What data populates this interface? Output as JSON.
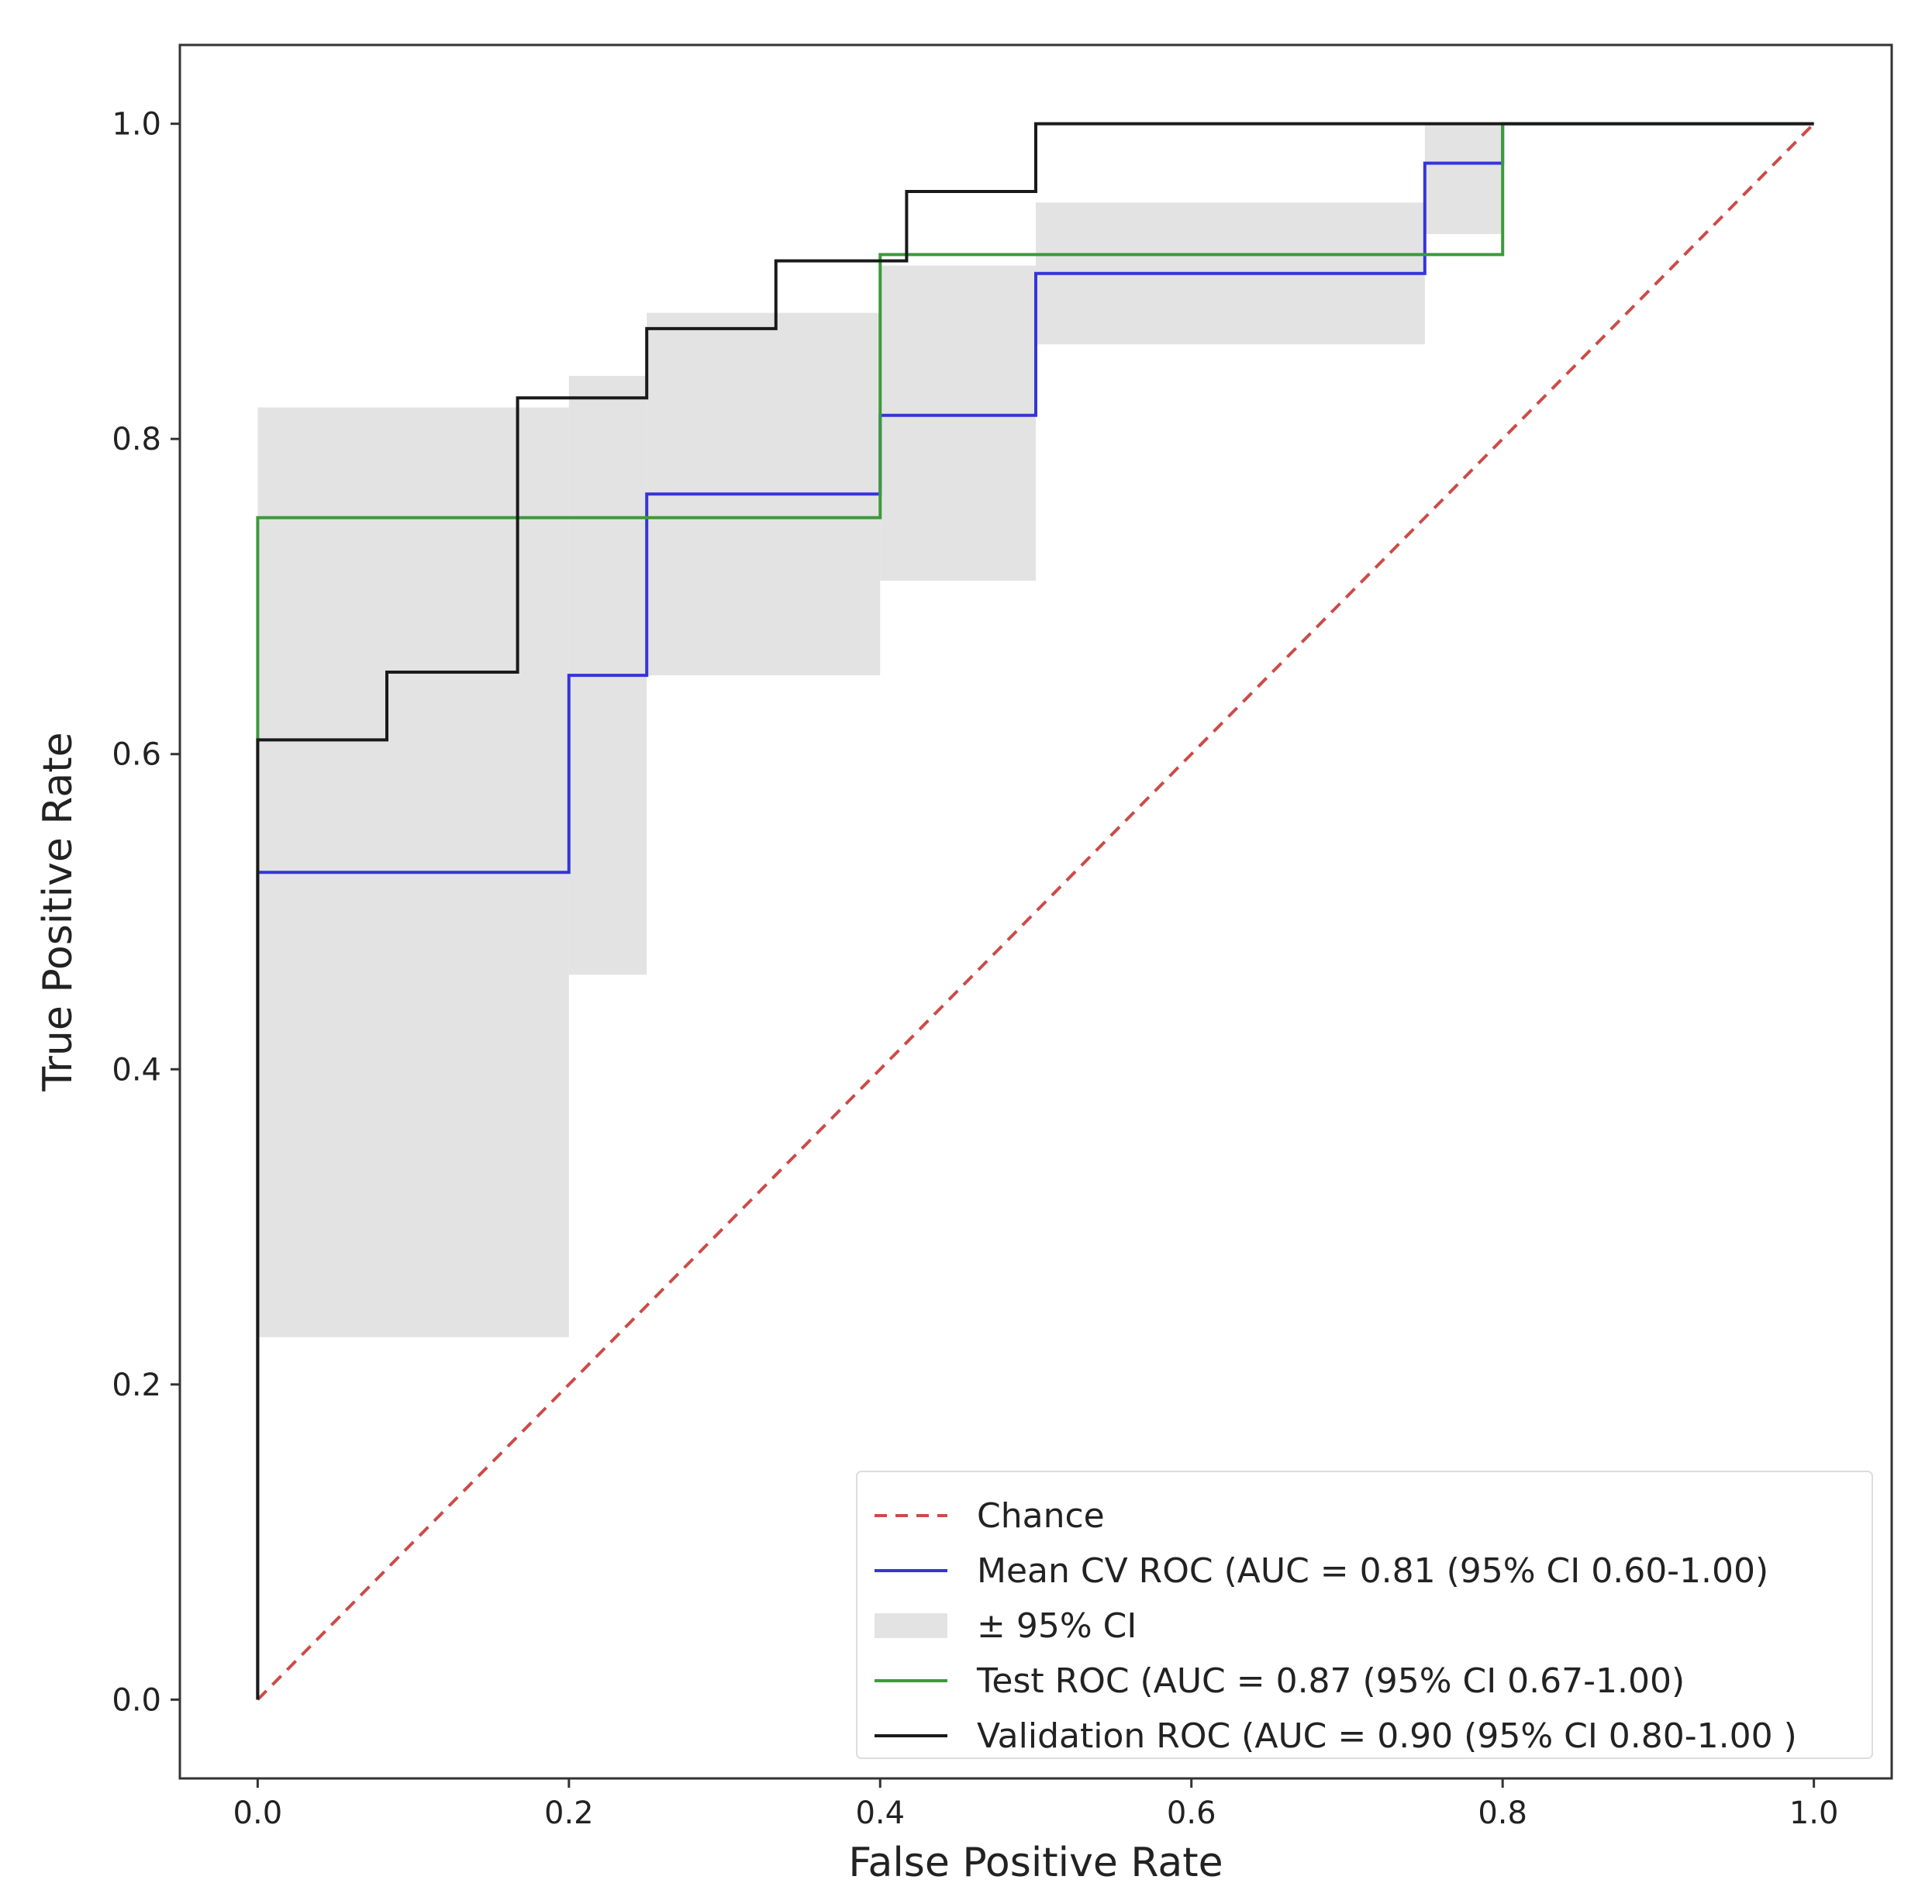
{
  "chart_data": {
    "type": "line",
    "title": "",
    "xlabel": "False Positive Rate",
    "ylabel": "True Positive Rate",
    "xlim": [
      -0.05,
      1.05
    ],
    "ylim": [
      -0.05,
      1.05
    ],
    "xticks": [
      0.0,
      0.2,
      0.4,
      0.6,
      0.8,
      1.0
    ],
    "xtick_labels": [
      "0.0",
      "0.2",
      "0.4",
      "0.6",
      "0.8",
      "1.0"
    ],
    "yticks": [
      0.0,
      0.2,
      0.4,
      0.6,
      0.8,
      1.0
    ],
    "ytick_labels": [
      "0.0",
      "0.2",
      "0.4",
      "0.6",
      "0.8",
      "1.0"
    ],
    "grid": false,
    "legend_position": "lower-right",
    "ci_band": {
      "name": "± 95% CI",
      "color": "#e3e3e3",
      "segments": [
        {
          "x0": 0.0,
          "x1": 0.2,
          "lo": 0.23,
          "hi": 0.82
        },
        {
          "x0": 0.2,
          "x1": 0.25,
          "lo": 0.46,
          "hi": 0.84
        },
        {
          "x0": 0.25,
          "x1": 0.4,
          "lo": 0.65,
          "hi": 0.88
        },
        {
          "x0": 0.4,
          "x1": 0.5,
          "lo": 0.71,
          "hi": 0.91
        },
        {
          "x0": 0.5,
          "x1": 0.75,
          "lo": 0.86,
          "hi": 0.95
        },
        {
          "x0": 0.75,
          "x1": 0.8,
          "lo": 0.93,
          "hi": 1.0
        }
      ]
    },
    "series": [
      {
        "name": "Chance",
        "color": "#cc4b48",
        "dashed": true,
        "x": [
          0.0,
          1.0
        ],
        "y": [
          0.0,
          1.0
        ]
      },
      {
        "name": "Mean CV ROC (AUC = 0.81 (95% CI 0.60-1.00)",
        "color": "#3535d8",
        "dashed": false,
        "x": [
          0.0,
          0.0,
          0.2,
          0.2,
          0.25,
          0.25,
          0.4,
          0.4,
          0.5,
          0.5,
          0.75,
          0.75,
          0.8,
          0.8,
          1.0
        ],
        "y": [
          0.0,
          0.525,
          0.525,
          0.65,
          0.65,
          0.765,
          0.765,
          0.815,
          0.815,
          0.905,
          0.905,
          0.975,
          0.975,
          1.0,
          1.0
        ]
      },
      {
        "name": "Test ROC (AUC = 0.87 (95% CI 0.67-1.00)",
        "color": "#3c9a3c",
        "dashed": false,
        "x": [
          0.0,
          0.0,
          0.4,
          0.4,
          0.8,
          0.8,
          1.0
        ],
        "y": [
          0.0,
          0.75,
          0.75,
          0.917,
          0.917,
          1.0,
          1.0
        ]
      },
      {
        "name": "Validation ROC (AUC = 0.90 (95% CI 0.80-1.00 )",
        "color": "#1a1a1a",
        "dashed": false,
        "x": [
          0.0,
          0.0,
          0.083,
          0.083,
          0.167,
          0.167,
          0.25,
          0.25,
          0.333,
          0.333,
          0.417,
          0.417,
          0.5,
          0.5,
          1.0
        ],
        "y": [
          0.0,
          0.609,
          0.609,
          0.652,
          0.652,
          0.826,
          0.826,
          0.87,
          0.87,
          0.913,
          0.913,
          0.957,
          0.957,
          1.0,
          1.0
        ]
      }
    ],
    "legend_order": [
      "Chance",
      "Mean CV ROC (AUC = 0.81 (95% CI 0.60-1.00)",
      "± 95% CI",
      "Test ROC (AUC = 0.87 (95% CI 0.67-1.00)",
      "Validation ROC (AUC = 0.90 (95% CI 0.80-1.00 )"
    ]
  }
}
